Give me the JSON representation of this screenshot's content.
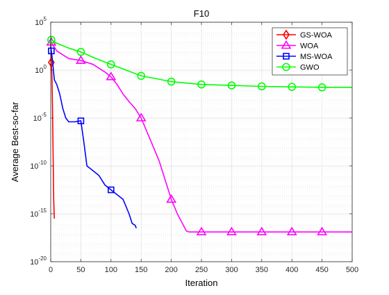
{
  "chart_data": {
    "type": "line",
    "title": "F10",
    "xlabel": "Iteration",
    "ylabel": "Average Best-so-far",
    "xlim": [
      0,
      500
    ],
    "ylim_log10": [
      -20,
      5
    ],
    "y_scale": "log",
    "grid": true,
    "legend_position": "top-right",
    "x_ticks": [
      0,
      50,
      100,
      150,
      200,
      250,
      300,
      350,
      400,
      450,
      500
    ],
    "y_ticks": [
      {
        "base": "10",
        "exp": "-20",
        "log10": -20
      },
      {
        "base": "10",
        "exp": "-15",
        "log10": -15
      },
      {
        "base": "10",
        "exp": "-10",
        "log10": -10
      },
      {
        "base": "10",
        "exp": "-5",
        "log10": -5
      },
      {
        "base": "10",
        "exp": "0",
        "log10": 0
      },
      {
        "base": "10",
        "exp": "5",
        "log10": 5
      }
    ],
    "series": [
      {
        "name": "GS-WOA",
        "color": "#ff0000",
        "marker": "diamond",
        "markers_at": [
          1
        ],
        "x": [
          0,
          1,
          2,
          3,
          4,
          5,
          6
        ],
        "log10_y": [
          2.8,
          0.8,
          -0.5,
          -4.0,
          -9.0,
          -13.5,
          -15.5
        ]
      },
      {
        "name": "WOA",
        "color": "#ff00ff",
        "marker": "triangle",
        "markers_at": [
          1,
          50,
          100,
          150,
          200,
          250,
          300,
          350,
          400,
          450
        ],
        "x": [
          0,
          10,
          30,
          50,
          70,
          90,
          100,
          110,
          120,
          130,
          140,
          150,
          160,
          170,
          180,
          190,
          200,
          210,
          220,
          225,
          230,
          240,
          250,
          300,
          350,
          400,
          450,
          500
        ],
        "log10_y": [
          3.0,
          2.0,
          1.2,
          1.0,
          0.6,
          -0.2,
          -0.7,
          -1.5,
          -2.5,
          -3.3,
          -4.0,
          -5.0,
          -6.5,
          -8.0,
          -9.5,
          -11.5,
          -13.5,
          -15.0,
          -16.2,
          -16.8,
          -16.9,
          -16.9,
          -16.9,
          -16.9,
          -16.9,
          -16.9,
          -16.9,
          -16.9
        ]
      },
      {
        "name": "MS-WOA",
        "color": "#0000ff",
        "marker": "square",
        "markers_at": [
          1,
          50,
          100
        ],
        "x": [
          0,
          1,
          3,
          6,
          10,
          15,
          20,
          25,
          30,
          40,
          50,
          55,
          60,
          70,
          80,
          90,
          100,
          110,
          120,
          130,
          135,
          140,
          142
        ],
        "log10_y": [
          2.5,
          2.0,
          1.0,
          -1.0,
          -1.5,
          -2.5,
          -4.0,
          -5.0,
          -5.4,
          -5.4,
          -5.3,
          -7.5,
          -10.0,
          -10.5,
          -11.0,
          -12.0,
          -12.5,
          -13.0,
          -13.5,
          -15.0,
          -16.0,
          -16.2,
          -16.5
        ]
      },
      {
        "name": "GWO",
        "color": "#00ff00",
        "marker": "circle",
        "markers_at": [
          1,
          50,
          100,
          150,
          200,
          250,
          300,
          350,
          400,
          450
        ],
        "x": [
          0,
          10,
          30,
          50,
          75,
          100,
          125,
          150,
          175,
          200,
          250,
          300,
          350,
          400,
          450,
          500
        ],
        "log10_y": [
          3.2,
          2.8,
          2.3,
          1.9,
          1.2,
          0.6,
          0.0,
          -0.6,
          -0.9,
          -1.2,
          -1.5,
          -1.6,
          -1.7,
          -1.75,
          -1.8,
          -1.8
        ]
      }
    ]
  }
}
